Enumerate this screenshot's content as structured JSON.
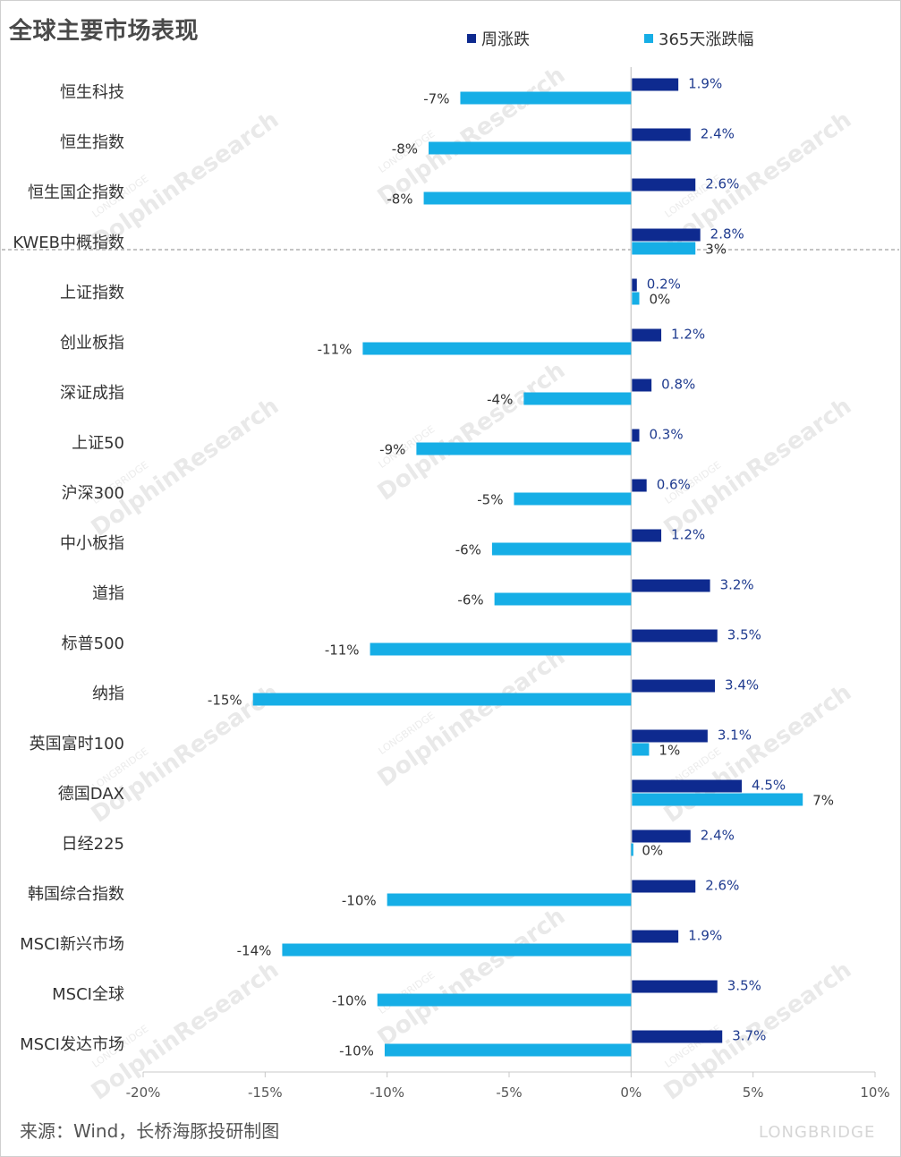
{
  "title": "全球主要市场表现",
  "source": "来源：Wind，长桥海豚投研制图",
  "brand_logo_text": "LONGBRIDGE",
  "watermark": {
    "main": "DolphinResearch",
    "sub": "LONGBRIDGE",
    "cn": "长桥海豚投研"
  },
  "colors": {
    "weekly": "#0e2a8f",
    "annual": "#16aee6",
    "weekly_label": "#1f3b8f",
    "annual_label": "#333333"
  },
  "chart_data": {
    "type": "bar",
    "orientation": "horizontal",
    "title": "全球主要市场表现",
    "legend_placement": "top",
    "xlim": [
      -20,
      10
    ],
    "x_ticks": [
      -20,
      -15,
      -10,
      -5,
      0,
      5,
      10
    ],
    "x_tick_labels": [
      "-20%",
      "-15%",
      "-10%",
      "-5%",
      "0%",
      "5%",
      "10%"
    ],
    "categories": [
      "恒生科技",
      "恒生指数",
      "恒生国企指数",
      "KWEB中概指数",
      "上证指数",
      "创业板指",
      "深证成指",
      "上证50",
      "沪深300",
      "中小板指",
      "道指",
      "标普500",
      "纳指",
      "英国富时100",
      "德国DAX",
      "日经225",
      "韩国综合指数",
      "MSCI新兴市场",
      "MSCI全球",
      "MSCI发达市场"
    ],
    "divider_after_index": 3,
    "series": [
      {
        "name": "周涨跌",
        "values": [
          1.9,
          2.4,
          2.6,
          2.8,
          0.2,
          1.2,
          0.8,
          0.3,
          0.6,
          1.2,
          3.2,
          3.5,
          3.4,
          3.1,
          4.5,
          2.4,
          2.6,
          1.9,
          3.5,
          3.7
        ],
        "labels": [
          "1.9%",
          "2.4%",
          "2.6%",
          "2.8%",
          "0.2%",
          "1.2%",
          "0.8%",
          "0.3%",
          "0.6%",
          "1.2%",
          "3.2%",
          "3.5%",
          "3.4%",
          "3.1%",
          "4.5%",
          "2.4%",
          "2.6%",
          "1.9%",
          "3.5%",
          "3.7%"
        ]
      },
      {
        "name": "365天涨跌幅",
        "values": [
          -7,
          -8.3,
          -8.5,
          2.6,
          0.3,
          -11,
          -4.4,
          -8.8,
          -4.8,
          -5.7,
          -5.6,
          -10.7,
          -15.5,
          0.7,
          7,
          0,
          -10,
          -14.3,
          -10.4,
          -10.1
        ],
        "labels": [
          "-7%",
          "-8%",
          "-8%",
          "3%",
          "0%",
          "-11%",
          "-4%",
          "-9%",
          "-5%",
          "-6%",
          "-6%",
          "-11%",
          "-15%",
          "1%",
          "7%",
          "0%",
          "-10%",
          "-14%",
          "-10%",
          "-10%"
        ]
      }
    ]
  }
}
